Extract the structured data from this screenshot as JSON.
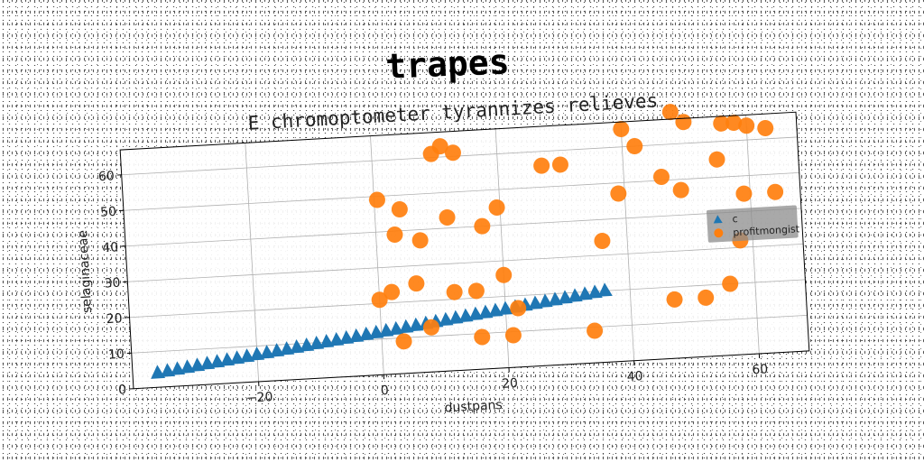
{
  "chart_data": {
    "type": "scatter",
    "title": "trapes",
    "subtitle": "E chromoptometer tyrannizes relieves",
    "xlabel": "dustpans",
    "ylabel": "selaginaceae",
    "xlim": [
      -40,
      68
    ],
    "ylim": [
      0,
      67
    ],
    "xticks": [
      -20,
      0,
      20,
      40,
      60
    ],
    "yticks": [
      0,
      10,
      20,
      30,
      40,
      50,
      60
    ],
    "grid": true,
    "legend_position": "right",
    "series": [
      {
        "name": "c",
        "marker": "triangle",
        "color": "#1f77b4",
        "x": [
          -36,
          -34.4,
          -32.8,
          -31.2,
          -29.6,
          -28,
          -26.4,
          -24.8,
          -23.2,
          -21.6,
          -20,
          -18.4,
          -16.8,
          -15.2,
          -13.6,
          -12,
          -10.4,
          -8.8,
          -7.2,
          -5.6,
          -4,
          -2.4,
          -0.8,
          0.8,
          2.4,
          4,
          5.6,
          7.2,
          8.8,
          10.4,
          12,
          13.6,
          15.2,
          16.8,
          18.4,
          20,
          21.6,
          23.2,
          24.8,
          26.4,
          28,
          29.6,
          31.2,
          32.8,
          34.4,
          36
        ],
        "y": [
          4,
          4.36,
          4.71,
          5.07,
          5.42,
          5.78,
          6.13,
          6.49,
          6.84,
          7.2,
          7.56,
          7.91,
          8.27,
          8.62,
          8.98,
          9.33,
          9.69,
          10.04,
          10.4,
          10.76,
          11.11,
          11.47,
          11.82,
          12.18,
          12.53,
          12.89,
          13.24,
          13.6,
          13.96,
          14.31,
          14.67,
          15.02,
          15.38,
          15.73,
          16.09,
          16.44,
          16.8,
          17.16,
          17.51,
          17.87,
          18.22,
          18.58,
          18.93,
          19.29,
          19.64,
          20
        ]
      },
      {
        "name": "profitmongist",
        "marker": "circle",
        "color": "#ff7f0e",
        "x": [
          0,
          0.5,
          2,
          3,
          3.5,
          4,
          6,
          7,
          8,
          9.5,
          11,
          11.5,
          12,
          13,
          15.5,
          16,
          17,
          19.5,
          20,
          21,
          22,
          27,
          30,
          34,
          36,
          39,
          40,
          42,
          46,
          47,
          48,
          49,
          50,
          52,
          55,
          56,
          56,
          58,
          58,
          59,
          60,
          63,
          64
        ],
        "y": [
          21,
          49,
          23,
          39,
          9,
          46,
          25,
          37,
          12.5,
          61,
          63,
          43,
          22,
          61,
          22,
          9,
          40,
          45,
          26,
          9,
          16.5,
          56,
          56,
          9,
          34,
          47,
          65,
          60,
          51,
          16.5,
          69,
          47,
          66,
          16.5,
          55,
          65,
          20,
          32,
          65,
          45,
          64,
          63,
          45
        ]
      }
    ]
  }
}
